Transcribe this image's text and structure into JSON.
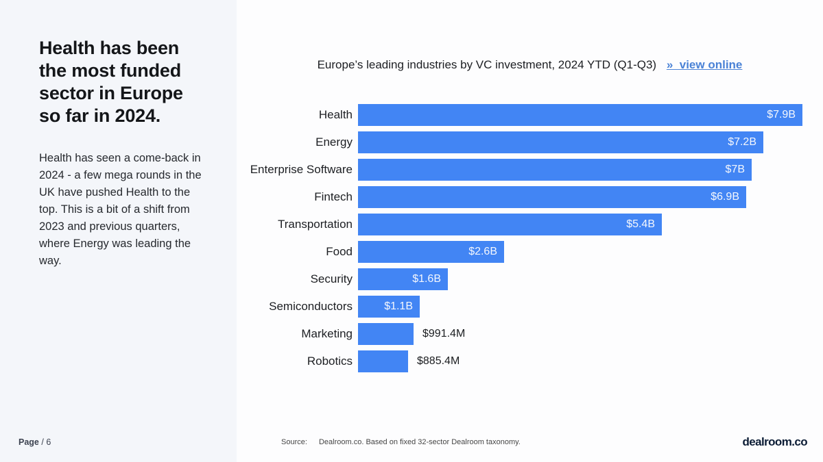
{
  "sidebar": {
    "title": "Health has been the most funded sector in Europe so far in 2024.",
    "body": "Health has seen a come-back in 2024 - a few mega rounds in the UK have pushed Health to the top. This is a bit of a shift from 2023 and previous quarters, where Energy was leading the way."
  },
  "header": {
    "chart_title": "Europe’s leading industries by VC investment, 2024 YTD (Q1-Q3)",
    "view_online_label": "»  view online"
  },
  "chart_data": {
    "type": "bar",
    "orientation": "horizontal",
    "title": "Europe’s leading industries by VC investment, 2024 YTD (Q1-Q3)",
    "categories": [
      "Health",
      "Energy",
      "Enterprise Software",
      "Fintech",
      "Transportation",
      "Food",
      "Security",
      "Semiconductors",
      "Marketing",
      "Robotics"
    ],
    "values_billion_usd": [
      7.9,
      7.2,
      7.0,
      6.9,
      5.4,
      2.6,
      1.6,
      1.1,
      0.9914,
      0.8854
    ],
    "value_labels": [
      "$7.9B",
      "$7.2B",
      "$7B",
      "$6.9B",
      "$5.4B",
      "$2.6B",
      "$1.6B",
      "$1.1B",
      "$991.4M",
      "$885.4M"
    ],
    "value_label_inside": [
      true,
      true,
      true,
      true,
      true,
      true,
      true,
      true,
      false,
      false
    ],
    "bar_color": "#4285f4",
    "xlim": [
      0,
      7.9
    ],
    "grid": false,
    "legend": false
  },
  "footer": {
    "page_label": "Page",
    "page_number": "/ 6",
    "source_label": "Source:",
    "source_text": "Dealroom.co. Based on fixed 32-sector Dealroom taxonomy.",
    "logo_text": "dealroom.co"
  },
  "colors": {
    "sidebar_background": "#f4f6fa",
    "panel_background": "#fdfdfe",
    "bar_blue": "#4285f4",
    "link_blue": "#4a82d6",
    "heading_text": "#141619",
    "logo_navy": "#0b1c35"
  }
}
